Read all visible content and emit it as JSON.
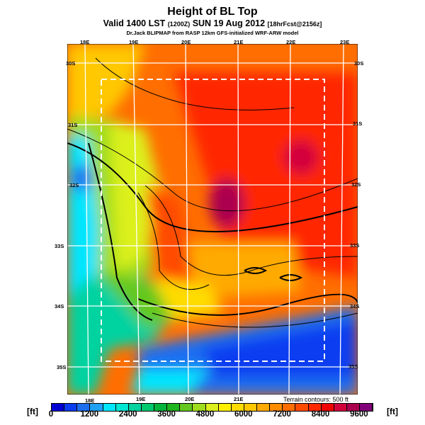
{
  "header": {
    "title": "Height of BL Top",
    "valid": "Valid 1400 LST",
    "valid_z": "(1200Z)",
    "date": "SUN 19 Aug 2012",
    "forecast": "[18hrFcst@2156z]",
    "credit": "Dr.Jack BLIPMAP from RASP 12km GFS-initialized WRF-ARW model"
  },
  "map": {
    "top_lon_labels": [
      "18E",
      "19E",
      "20E",
      "21E",
      "22E",
      "23E"
    ],
    "bottom_lon_labels": [
      "18E",
      "19E",
      "20E",
      "21E"
    ],
    "left_lat_labels": [
      "30S",
      "31S",
      "32S",
      "33S",
      "34S",
      "35S"
    ],
    "right_lat_labels": [
      "30S",
      "31S",
      "32S",
      "33S",
      "34S",
      "35S"
    ],
    "terrain_note": "Terrain contours: 500 ft"
  },
  "colorbar": {
    "unit_left": "[ft]",
    "unit_right": "[ft]",
    "labels": [
      "0",
      "1200",
      "2400",
      "3600",
      "4800",
      "6000",
      "7200",
      "8400",
      "9600"
    ],
    "colors": [
      "#0000d2",
      "#0a3cf0",
      "#1e6ef0",
      "#1ea0f5",
      "#00e6ff",
      "#00e6d2",
      "#00d2a0",
      "#00c86e",
      "#00b43c",
      "#1eb41e",
      "#64c81e",
      "#a0dc1e",
      "#dcf01e",
      "#fff000",
      "#ffdc00",
      "#ffc800",
      "#ffaa00",
      "#ff8c00",
      "#ff6e00",
      "#ff4b00",
      "#ff2800",
      "#f00000",
      "#d2003c",
      "#aa0050",
      "#820078"
    ]
  }
}
